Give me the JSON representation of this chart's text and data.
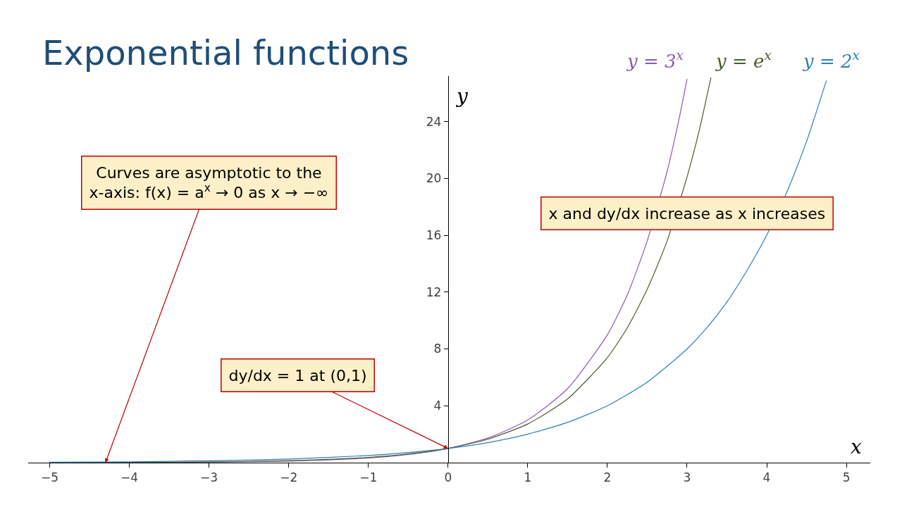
{
  "chart_data": {
    "type": "line",
    "title": "Exponential functions",
    "xlabel": "x",
    "ylabel": "y",
    "xlim": [
      -5.27,
      5.3
    ],
    "ylim": [
      0,
      27.2
    ],
    "xticks": [
      {
        "value": -5,
        "label": "−5"
      },
      {
        "value": -4,
        "label": "−4"
      },
      {
        "value": -3,
        "label": "−3"
      },
      {
        "value": -2,
        "label": "−2"
      },
      {
        "value": -1,
        "label": "−1"
      },
      0,
      1,
      2,
      3,
      4,
      5
    ],
    "yticks": [
      4,
      8,
      12,
      16,
      20,
      24
    ],
    "legend": false,
    "marker": "none",
    "line_style": "solid",
    "series": [
      {
        "name": "y = 3$^{x}$",
        "color": "#8a5cb0",
        "x": [
          -5,
          -4,
          -3,
          -2,
          -1,
          -0.5,
          0,
          0.5,
          1,
          1.5,
          2,
          2.25,
          2.5,
          2.75,
          2.9,
          3
        ],
        "values": [
          0.0,
          0.01,
          0.04,
          0.11,
          0.33,
          0.58,
          1,
          1.73,
          3,
          5.2,
          9,
          11.8,
          15.6,
          20.5,
          24.2,
          27
        ]
      },
      {
        "name": "y = e$^{x}$",
        "color": "#4a5d2e",
        "x": [
          -5,
          -4,
          -3,
          -2,
          -1,
          -0.5,
          0,
          0.5,
          1,
          1.5,
          2,
          2.25,
          2.5,
          2.75,
          3,
          3.15,
          3.3
        ],
        "values": [
          0.01,
          0.02,
          0.05,
          0.14,
          0.37,
          0.61,
          1,
          1.65,
          2.72,
          4.48,
          7.39,
          9.49,
          12.2,
          15.6,
          20.1,
          23.3,
          27.1
        ]
      },
      {
        "name": "y = 2$^{x}$",
        "color": "#2f7fb0",
        "x": [
          -5,
          -4,
          -3,
          -2,
          -1,
          -0.5,
          0,
          0.5,
          1,
          1.5,
          2,
          2.5,
          3,
          3.25,
          3.5,
          3.75,
          4,
          4.25,
          4.5,
          4.75
        ],
        "values": [
          0.03,
          0.06,
          0.13,
          0.25,
          0.5,
          0.71,
          1,
          1.41,
          2,
          2.83,
          4,
          5.66,
          8,
          9.51,
          11.3,
          13.5,
          16,
          19,
          22.6,
          26.9
        ]
      }
    ],
    "annotations": [
      {
        "text": "Curves are asymptotic to the x-axis: f(x) = a$^{x}$ → 0 as x → −∞",
        "x": -4.3,
        "y": 0
      },
      {
        "text": "dy/dx = 1 at (0,1)",
        "x": 0,
        "y": 1
      },
      "x and dy/dx increase as x increases"
    ]
  }
}
